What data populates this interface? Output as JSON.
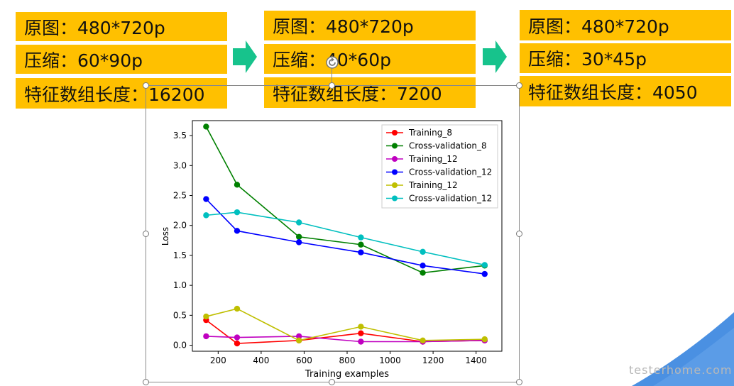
{
  "panels": [
    {
      "orig": "原图：480*720p",
      "comp": "压缩：60*90p",
      "feat": "特征数组长度：16200"
    },
    {
      "orig": "原图：480*720p",
      "comp": "压缩：40*60p",
      "feat": "特征数组长度：7200"
    },
    {
      "orig": "原图：480*720p",
      "comp": "压缩：30*45p",
      "feat": "特征数组长度：4050"
    }
  ],
  "colors": {
    "box": "#FFC000",
    "arrow": "#17C38C",
    "corner": "#4A90E2"
  },
  "icons": {
    "arrow": "right-arrow-icon",
    "rotate": "rotate-handle-icon"
  },
  "watermark": "testerhome.com",
  "chart_data": {
    "type": "line",
    "xlabel": "Training examples",
    "ylabel": "Loss",
    "xlim": [
      80,
      1520
    ],
    "ylim": [
      -0.1,
      3.75
    ],
    "xticks": [
      200,
      400,
      600,
      800,
      1000,
      1200,
      1400
    ],
    "yticks": [
      0.0,
      0.5,
      1.0,
      1.5,
      2.0,
      2.5,
      3.0,
      3.5
    ],
    "x": [
      144,
      288,
      576,
      864,
      1152,
      1440
    ],
    "legend_position": "top-right",
    "series": [
      {
        "name": "Training_8",
        "color": "#ff0000",
        "values": [
          0.42,
          0.03,
          0.08,
          0.2,
          0.06,
          0.08
        ]
      },
      {
        "name": "Cross-validation_8",
        "color": "#008000",
        "values": [
          3.65,
          2.68,
          1.81,
          1.68,
          1.21,
          1.33
        ]
      },
      {
        "name": "Training_12",
        "color": "#c000c0",
        "values": [
          0.15,
          0.13,
          0.15,
          0.06,
          0.06,
          0.08
        ]
      },
      {
        "name": "Cross-validation_12",
        "color": "#0000ff",
        "values": [
          2.44,
          1.91,
          1.72,
          1.55,
          1.33,
          1.19
        ]
      },
      {
        "name": "Training_12",
        "color": "#bfbf00",
        "values": [
          0.48,
          0.61,
          0.08,
          0.31,
          0.08,
          0.1
        ]
      },
      {
        "name": "Cross-validation_12",
        "color": "#00bfbf",
        "values": [
          2.17,
          2.22,
          2.05,
          1.8,
          1.56,
          1.34
        ]
      }
    ]
  }
}
